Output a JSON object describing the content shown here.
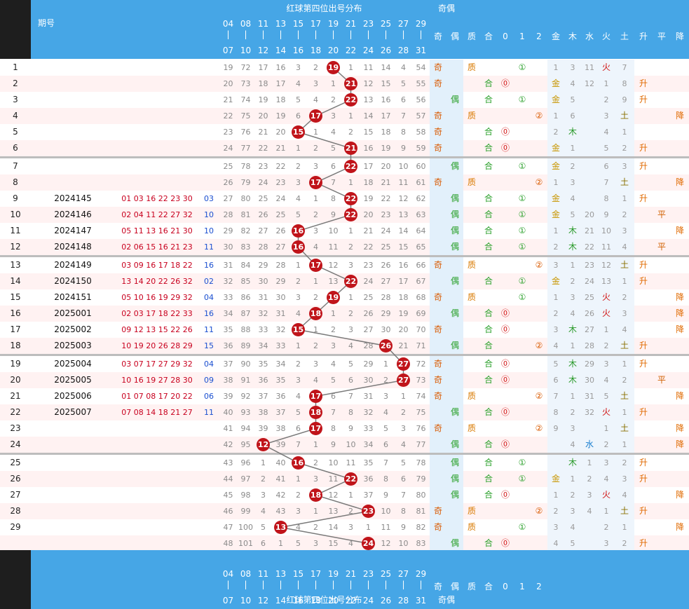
{
  "header": {
    "title": "红球第四位出号分布",
    "parity_title": "奇偶",
    "issue_label": "期号",
    "top_numbers": [
      "04",
      "08",
      "11",
      "13",
      "15",
      "17",
      "19",
      "21",
      "23",
      "25",
      "27",
      "29"
    ],
    "bottom_numbers": [
      "07",
      "10",
      "12",
      "14",
      "16",
      "18",
      "20",
      "22",
      "24",
      "26",
      "28",
      "31"
    ],
    "attr_labels": [
      "奇",
      "偶",
      "质",
      "合",
      "0",
      "1",
      "2",
      "金",
      "木",
      "水",
      "火",
      "土",
      "升",
      "平",
      "降"
    ],
    "footer_attr_labels": [
      "奇",
      "偶",
      "质",
      "合",
      "0",
      "1",
      "2"
    ]
  },
  "colors": {
    "header": "#46a6e6",
    "ball": "#c0141a",
    "odd": "#d95a00",
    "even": "#2aa02a",
    "prime": "#d97a00",
    "composite": "#2aa02a",
    "wood": "#2a9a2a",
    "fire": "#d01010",
    "earth": "#8a7000",
    "gold": "#c89600",
    "water": "#1a7fd0",
    "rise": "#e06a00",
    "flat": "#d06000",
    "fall": "#e06a00"
  },
  "chart_data": {
    "type": "table",
    "title": "红球第四位出号分布",
    "rows": [
      {
        "n": "1",
        "issue": "",
        "nums": "",
        "blue": "",
        "cols": [
          "19",
          "72",
          "17",
          "16",
          "3",
          "2",
          "19",
          "1",
          "11",
          "14",
          "4",
          "54"
        ],
        "hit": 6,
        "ball": "19",
        "attrs": [
          "奇",
          "",
          "质",
          "",
          "",
          "①",
          "",
          "1",
          "3",
          "11",
          "火",
          "7",
          "",
          "",
          ""
        ]
      },
      {
        "n": "2",
        "issue": "",
        "nums": "",
        "blue": "",
        "cols": [
          "20",
          "73",
          "18",
          "17",
          "4",
          "3",
          "1",
          "21",
          "12",
          "15",
          "5",
          "55"
        ],
        "hit": 7,
        "ball": "21",
        "attrs": [
          "奇",
          "",
          "",
          "合",
          "⓪",
          "",
          "",
          "金",
          "4",
          "12",
          "1",
          "8",
          "升",
          "",
          ""
        ]
      },
      {
        "n": "3",
        "issue": "",
        "nums": "",
        "blue": "",
        "cols": [
          "21",
          "74",
          "19",
          "18",
          "5",
          "4",
          "2",
          "22",
          "13",
          "16",
          "6",
          "56"
        ],
        "hit": 7,
        "ball": "22",
        "attrs": [
          "",
          "偶",
          "",
          "合",
          "",
          "①",
          "",
          "金",
          "5",
          "",
          "2",
          "9",
          "升",
          "",
          ""
        ]
      },
      {
        "n": "4",
        "issue": "",
        "nums": "",
        "blue": "",
        "cols": [
          "22",
          "75",
          "20",
          "19",
          "6",
          "17",
          "3",
          "1",
          "14",
          "17",
          "7",
          "57"
        ],
        "hit": 5,
        "ball": "17",
        "attrs": [
          "奇",
          "",
          "质",
          "",
          "",
          "",
          "②",
          "1",
          "6",
          "",
          "3",
          "土",
          "",
          "",
          "降"
        ]
      },
      {
        "n": "5",
        "issue": "",
        "nums": "",
        "blue": "",
        "cols": [
          "23",
          "76",
          "21",
          "20",
          "15",
          "1",
          "4",
          "2",
          "15",
          "18",
          "8",
          "58"
        ],
        "hit": 4,
        "ball": "15",
        "attrs": [
          "奇",
          "",
          "",
          "合",
          "⓪",
          "",
          "",
          "2",
          "木",
          "",
          "4",
          "1",
          "",
          "",
          ""
        ]
      },
      {
        "n": "6",
        "issue": "",
        "nums": "",
        "blue": "",
        "cols": [
          "24",
          "77",
          "22",
          "21",
          "1",
          "2",
          "5",
          "21",
          "16",
          "19",
          "9",
          "59"
        ],
        "hit": 7,
        "ball": "21",
        "attrs": [
          "奇",
          "",
          "",
          "合",
          "⓪",
          "",
          "",
          "金",
          "1",
          "",
          "5",
          "2",
          "升",
          "",
          ""
        ]
      },
      {
        "n": "7",
        "issue": "",
        "nums": "",
        "blue": "",
        "cols": [
          "25",
          "78",
          "23",
          "22",
          "2",
          "3",
          "6",
          "22",
          "17",
          "20",
          "10",
          "60"
        ],
        "hit": 7,
        "ball": "22",
        "attrs": [
          "",
          "偶",
          "",
          "合",
          "",
          "①",
          "",
          "金",
          "2",
          "",
          "6",
          "3",
          "升",
          "",
          ""
        ]
      },
      {
        "n": "8",
        "issue": "",
        "nums": "",
        "blue": "",
        "cols": [
          "26",
          "79",
          "24",
          "23",
          "3",
          "17",
          "7",
          "1",
          "18",
          "21",
          "11",
          "61"
        ],
        "hit": 5,
        "ball": "17",
        "attrs": [
          "奇",
          "",
          "质",
          "",
          "",
          "",
          "②",
          "1",
          "3",
          "",
          "7",
          "土",
          "",
          "",
          "降"
        ]
      },
      {
        "n": "9",
        "issue": "2024145",
        "nums": "01 03 16 22 23 30",
        "blue": "03",
        "cols": [
          "27",
          "80",
          "25",
          "24",
          "4",
          "1",
          "8",
          "22",
          "19",
          "22",
          "12",
          "62"
        ],
        "hit": 7,
        "ball": "22",
        "attrs": [
          "",
          "偶",
          "",
          "合",
          "",
          "①",
          "",
          "金",
          "4",
          "",
          "8",
          "1",
          "升",
          "",
          ""
        ]
      },
      {
        "n": "10",
        "issue": "2024146",
        "nums": "02 04 11 22 27 32",
        "blue": "10",
        "cols": [
          "28",
          "81",
          "26",
          "25",
          "5",
          "2",
          "9",
          "22",
          "20",
          "23",
          "13",
          "63"
        ],
        "hit": 7,
        "ball": "22",
        "attrs": [
          "",
          "偶",
          "",
          "合",
          "",
          "①",
          "",
          "金",
          "5",
          "20",
          "9",
          "2",
          "",
          "平",
          ""
        ]
      },
      {
        "n": "11",
        "issue": "2024147",
        "nums": "05 11 13 16 21 30",
        "blue": "10",
        "cols": [
          "29",
          "82",
          "27",
          "26",
          "16",
          "3",
          "10",
          "1",
          "21",
          "24",
          "14",
          "64"
        ],
        "hit": 4,
        "ball": "16",
        "attrs": [
          "",
          "偶",
          "",
          "合",
          "",
          "①",
          "",
          "1",
          "木",
          "21",
          "10",
          "3",
          "",
          "",
          "降"
        ]
      },
      {
        "n": "12",
        "issue": "2024148",
        "nums": "02 06 15 16 21 23",
        "blue": "11",
        "cols": [
          "30",
          "83",
          "28",
          "27",
          "16",
          "4",
          "11",
          "2",
          "22",
          "25",
          "15",
          "65"
        ],
        "hit": 4,
        "ball": "16",
        "attrs": [
          "",
          "偶",
          "",
          "合",
          "",
          "①",
          "",
          "2",
          "木",
          "22",
          "11",
          "4",
          "",
          "平",
          ""
        ]
      },
      {
        "n": "13",
        "issue": "2024149",
        "nums": "03 09 16 17 18 22",
        "blue": "16",
        "cols": [
          "31",
          "84",
          "29",
          "28",
          "1",
          "17",
          "12",
          "3",
          "23",
          "26",
          "16",
          "66"
        ],
        "hit": 5,
        "ball": "17",
        "attrs": [
          "奇",
          "",
          "质",
          "",
          "",
          "",
          "②",
          "3",
          "1",
          "23",
          "12",
          "土",
          "升",
          "",
          ""
        ]
      },
      {
        "n": "14",
        "issue": "2024150",
        "nums": "13 14 20 22 26 32",
        "blue": "02",
        "cols": [
          "32",
          "85",
          "30",
          "29",
          "2",
          "1",
          "13",
          "22",
          "24",
          "27",
          "17",
          "67"
        ],
        "hit": 7,
        "ball": "22",
        "attrs": [
          "",
          "偶",
          "",
          "合",
          "",
          "①",
          "",
          "金",
          "2",
          "24",
          "13",
          "1",
          "升",
          "",
          ""
        ]
      },
      {
        "n": "15",
        "issue": "2024151",
        "nums": "05 10 16 19 29 32",
        "blue": "04",
        "cols": [
          "33",
          "86",
          "31",
          "30",
          "3",
          "2",
          "19",
          "1",
          "25",
          "28",
          "18",
          "68"
        ],
        "hit": 6,
        "ball": "19",
        "attrs": [
          "奇",
          "",
          "质",
          "",
          "",
          "①",
          "",
          "1",
          "3",
          "25",
          "火",
          "2",
          "",
          "",
          "降"
        ]
      },
      {
        "n": "16",
        "issue": "2025001",
        "nums": "02 03 17 18 22 33",
        "blue": "16",
        "cols": [
          "34",
          "87",
          "32",
          "31",
          "4",
          "18",
          "1",
          "2",
          "26",
          "29",
          "19",
          "69"
        ],
        "hit": 5,
        "ball": "18",
        "attrs": [
          "",
          "偶",
          "",
          "合",
          "⓪",
          "",
          "",
          "2",
          "4",
          "26",
          "火",
          "3",
          "",
          "",
          "降"
        ]
      },
      {
        "n": "17",
        "issue": "2025002",
        "nums": "09 12 13 15 22 26",
        "blue": "11",
        "cols": [
          "35",
          "88",
          "33",
          "32",
          "15",
          "1",
          "2",
          "3",
          "27",
          "30",
          "20",
          "70"
        ],
        "hit": 4,
        "ball": "15",
        "attrs": [
          "奇",
          "",
          "",
          "合",
          "⓪",
          "",
          "",
          "3",
          "木",
          "27",
          "1",
          "4",
          "",
          "",
          "降"
        ]
      },
      {
        "n": "18",
        "issue": "2025003",
        "nums": "10 19 20 26 28 29",
        "blue": "15",
        "cols": [
          "36",
          "89",
          "34",
          "33",
          "1",
          "2",
          "3",
          "4",
          "28",
          "26",
          "21",
          "71"
        ],
        "hit": 9,
        "ball": "26",
        "attrs": [
          "",
          "偶",
          "",
          "合",
          "",
          "",
          "②",
          "4",
          "1",
          "28",
          "2",
          "土",
          "升",
          "",
          ""
        ]
      },
      {
        "n": "19",
        "issue": "2025004",
        "nums": "03 07 17 27 29 32",
        "blue": "04",
        "cols": [
          "37",
          "90",
          "35",
          "34",
          "2",
          "3",
          "4",
          "5",
          "29",
          "1",
          "27",
          "72"
        ],
        "hit": 10,
        "ball": "27",
        "attrs": [
          "奇",
          "",
          "",
          "合",
          "⓪",
          "",
          "",
          "5",
          "木",
          "29",
          "3",
          "1",
          "升",
          "",
          ""
        ]
      },
      {
        "n": "20",
        "issue": "2025005",
        "nums": "10 16 19 27 28 30",
        "blue": "09",
        "cols": [
          "38",
          "91",
          "36",
          "35",
          "3",
          "4",
          "5",
          "6",
          "30",
          "2",
          "27",
          "73"
        ],
        "hit": 10,
        "ball": "27",
        "attrs": [
          "奇",
          "",
          "",
          "合",
          "⓪",
          "",
          "",
          "6",
          "木",
          "30",
          "4",
          "2",
          "",
          "平",
          ""
        ]
      },
      {
        "n": "21",
        "issue": "2025006",
        "nums": "01 07 08 17 20 22",
        "blue": "06",
        "cols": [
          "39",
          "92",
          "37",
          "36",
          "4",
          "17",
          "6",
          "7",
          "31",
          "3",
          "1",
          "74"
        ],
        "hit": 5,
        "ball": "17",
        "attrs": [
          "奇",
          "",
          "质",
          "",
          "",
          "",
          "②",
          "7",
          "1",
          "31",
          "5",
          "土",
          "",
          "",
          "降"
        ]
      },
      {
        "n": "22",
        "issue": "2025007",
        "nums": "07 08 14 18 21 27",
        "blue": "11",
        "cols": [
          "40",
          "93",
          "38",
          "37",
          "5",
          "18",
          "7",
          "8",
          "32",
          "4",
          "2",
          "75"
        ],
        "hit": 5,
        "ball": "18",
        "attrs": [
          "",
          "偶",
          "",
          "合",
          "⓪",
          "",
          "",
          "8",
          "2",
          "32",
          "火",
          "1",
          "升",
          "",
          ""
        ]
      },
      {
        "n": "23",
        "issue": "",
        "nums": "",
        "blue": "",
        "cols": [
          "41",
          "94",
          "39",
          "38",
          "6",
          "17",
          "8",
          "9",
          "33",
          "5",
          "3",
          "76"
        ],
        "hit": 5,
        "ball": "17",
        "attrs": [
          "奇",
          "",
          "质",
          "",
          "",
          "",
          "②",
          "9",
          "3",
          "",
          "1",
          "土",
          "",
          "",
          "降"
        ]
      },
      {
        "n": "24",
        "issue": "",
        "nums": "",
        "blue": "",
        "cols": [
          "42",
          "95",
          "12",
          "39",
          "7",
          "1",
          "9",
          "10",
          "34",
          "6",
          "4",
          "77"
        ],
        "hit": 2,
        "ball": "12",
        "attrs": [
          "",
          "偶",
          "",
          "合",
          "⓪",
          "",
          "",
          "",
          "4",
          "水",
          "2",
          "1",
          "",
          "",
          "降"
        ]
      },
      {
        "n": "25",
        "issue": "",
        "nums": "",
        "blue": "",
        "cols": [
          "43",
          "96",
          "1",
          "40",
          "16",
          "2",
          "10",
          "11",
          "35",
          "7",
          "5",
          "78"
        ],
        "hit": 4,
        "ball": "16",
        "attrs": [
          "",
          "偶",
          "",
          "合",
          "",
          "①",
          "",
          "",
          "木",
          "1",
          "3",
          "2",
          "升",
          "",
          ""
        ]
      },
      {
        "n": "26",
        "issue": "",
        "nums": "",
        "blue": "",
        "cols": [
          "44",
          "97",
          "2",
          "41",
          "1",
          "3",
          "11",
          "22",
          "36",
          "8",
          "6",
          "79"
        ],
        "hit": 7,
        "ball": "22",
        "attrs": [
          "",
          "偶",
          "",
          "合",
          "",
          "①",
          "",
          "金",
          "1",
          "2",
          "4",
          "3",
          "升",
          "",
          ""
        ]
      },
      {
        "n": "27",
        "issue": "",
        "nums": "",
        "blue": "",
        "cols": [
          "45",
          "98",
          "3",
          "42",
          "2",
          "18",
          "12",
          "1",
          "37",
          "9",
          "7",
          "80"
        ],
        "hit": 5,
        "ball": "18",
        "attrs": [
          "",
          "偶",
          "",
          "合",
          "⓪",
          "",
          "",
          "1",
          "2",
          "3",
          "火",
          "4",
          "",
          "",
          "降"
        ]
      },
      {
        "n": "28",
        "issue": "",
        "nums": "",
        "blue": "",
        "cols": [
          "46",
          "99",
          "4",
          "43",
          "3",
          "1",
          "13",
          "2",
          "23",
          "10",
          "8",
          "81"
        ],
        "hit": 8,
        "ball": "23",
        "attrs": [
          "奇",
          "",
          "质",
          "",
          "",
          "",
          "②",
          "2",
          "3",
          "4",
          "1",
          "土",
          "升",
          "",
          ""
        ]
      },
      {
        "n": "29",
        "issue": "",
        "nums": "",
        "blue": "",
        "cols": [
          "47",
          "100",
          "5",
          "13",
          "4",
          "2",
          "14",
          "3",
          "1",
          "11",
          "9",
          "82"
        ],
        "hit": 3,
        "ball": "13",
        "attrs": [
          "奇",
          "",
          "质",
          "",
          "",
          "①",
          "",
          "3",
          "4",
          "",
          "2",
          "1",
          "",
          "",
          "降"
        ]
      },
      {
        "n": "",
        "issue": "",
        "nums": "",
        "blue": "",
        "cols": [
          "48",
          "101",
          "6",
          "1",
          "5",
          "3",
          "15",
          "4",
          "24",
          "12",
          "10",
          "83"
        ],
        "hit": 8,
        "ball": "24",
        "attrs": [
          "",
          "偶",
          "",
          "合",
          "⓪",
          "",
          "",
          "4",
          "5",
          "",
          "3",
          "2",
          "升",
          "",
          ""
        ]
      }
    ]
  }
}
